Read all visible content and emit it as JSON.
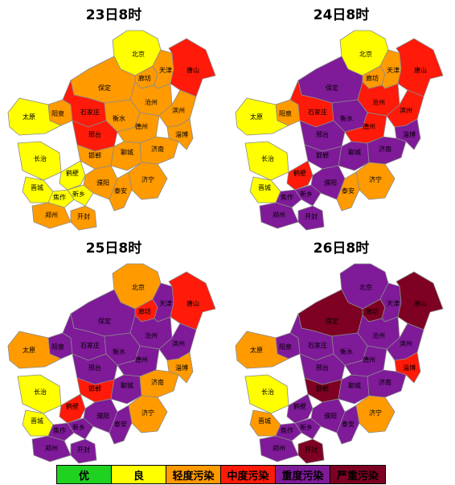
{
  "colors": {
    "excellent": "#1fd21f",
    "good": "#ffff00",
    "light": "#ff9a00",
    "moderate": "#ff1a0a",
    "heavy": "#7f1a99",
    "severe": "#7e0023"
  },
  "legend": [
    {
      "label": "优",
      "level": "excellent"
    },
    {
      "label": "良",
      "level": "good"
    },
    {
      "label": "轻度污染",
      "level": "light"
    },
    {
      "label": "中度污染",
      "level": "moderate"
    },
    {
      "label": "重度污染",
      "level": "heavy"
    },
    {
      "label": "严重污染",
      "level": "severe"
    }
  ],
  "panels": [
    {
      "title": "23日8时",
      "labels": [
        "北京",
        "廊坊",
        "天津",
        "唐山",
        "保定",
        "沧州",
        "阳泉",
        "石家庄",
        "衡水",
        "太原",
        "邢台",
        "德州",
        "滨州",
        "淄博",
        "长治",
        "邯郸",
        "聊城",
        "济南",
        "晋城",
        "焦作",
        "新乡",
        "鹤壁",
        "濮阳",
        "济宁",
        "郑州",
        "开封",
        "泰安"
      ],
      "levels": [
        "good",
        "light",
        "light",
        "moderate",
        "light",
        "light",
        "light",
        "moderate",
        "light",
        "good",
        "moderate",
        "light",
        "light",
        "light",
        "good",
        "light",
        "light",
        "light",
        "good",
        "good",
        "good",
        "good",
        "light",
        "light",
        "light",
        "light",
        "light"
      ]
    },
    {
      "title": "24日8时",
      "labels": [
        "北京",
        "廊坊",
        "天津",
        "唐山",
        "保定",
        "沧州",
        "阳泉",
        "石家庄",
        "衡水",
        "太原",
        "邢台",
        "德州",
        "滨州",
        "淄博",
        "长治",
        "邯郸",
        "聊城",
        "济南",
        "晋城",
        "焦作",
        "新乡",
        "鹤壁",
        "濮阳",
        "济宁",
        "郑州",
        "开封",
        "泰安"
      ],
      "levels": [
        "good",
        "light",
        "light",
        "moderate",
        "heavy",
        "moderate",
        "light",
        "moderate",
        "heavy",
        "good",
        "heavy",
        "moderate",
        "moderate",
        "heavy",
        "good",
        "heavy",
        "heavy",
        "heavy",
        "good",
        "heavy",
        "heavy",
        "moderate",
        "heavy",
        "light",
        "heavy",
        "heavy",
        "light"
      ]
    },
    {
      "title": "25日8时",
      "labels": [
        "北京",
        "廊坊",
        "天津",
        "唐山",
        "保定",
        "沧州",
        "阳泉",
        "石家庄",
        "衡水",
        "太原",
        "邢台",
        "德州",
        "滨州",
        "淄博",
        "长治",
        "邯郸",
        "聊城",
        "济南",
        "晋城",
        "焦作",
        "新乡",
        "鹤壁",
        "濮阳",
        "济宁",
        "郑州",
        "开封",
        "泰安"
      ],
      "levels": [
        "light",
        "moderate",
        "heavy",
        "moderate",
        "heavy",
        "heavy",
        "heavy",
        "heavy",
        "heavy",
        "light",
        "heavy",
        "heavy",
        "heavy",
        "light",
        "good",
        "moderate",
        "heavy",
        "light",
        "good",
        "heavy",
        "heavy",
        "moderate",
        "heavy",
        "light",
        "heavy",
        "heavy",
        "heavy"
      ]
    },
    {
      "title": "26日8时",
      "labels": [
        "北京",
        "廊坊",
        "天津",
        "唐山",
        "保定",
        "沧州",
        "阳泉",
        "石家庄",
        "衡水",
        "太原",
        "邢台",
        "德州",
        "滨州",
        "淄博",
        "长治",
        "邯郸",
        "聊城",
        "济南",
        "晋城",
        "焦作",
        "新乡",
        "鹤壁",
        "濮阳",
        "济宁",
        "郑州",
        "开封",
        "泰安"
      ],
      "levels": [
        "heavy",
        "severe",
        "heavy",
        "severe",
        "severe",
        "heavy",
        "heavy",
        "heavy",
        "heavy",
        "light",
        "heavy",
        "heavy",
        "heavy",
        "moderate",
        "good",
        "severe",
        "heavy",
        "heavy",
        "light",
        "heavy",
        "heavy",
        "heavy",
        "heavy",
        "light",
        "heavy",
        "severe",
        "heavy"
      ]
    }
  ]
}
